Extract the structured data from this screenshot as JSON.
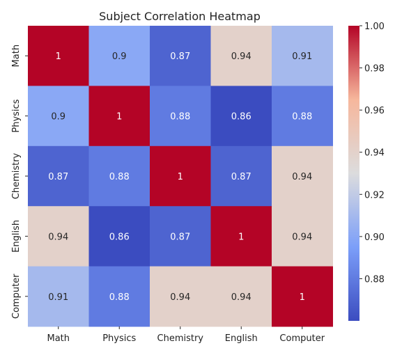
{
  "chart_data": {
    "type": "heatmap",
    "title": "Subject Correlation Heatmap",
    "rows": [
      "Math",
      "Physics",
      "Chemistry",
      "English",
      "Computer"
    ],
    "columns": [
      "Math",
      "Physics",
      "Chemistry",
      "English",
      "Computer"
    ],
    "values": [
      [
        1,
        0.9,
        0.87,
        0.94,
        0.91
      ],
      [
        0.9,
        1,
        0.88,
        0.86,
        0.88
      ],
      [
        0.87,
        0.88,
        1,
        0.87,
        0.94
      ],
      [
        0.94,
        0.86,
        0.87,
        1,
        0.94
      ],
      [
        0.91,
        0.88,
        0.94,
        0.94,
        1
      ]
    ],
    "value_labels": [
      [
        "1",
        "0.9",
        "0.87",
        "0.94",
        "0.91"
      ],
      [
        "0.9",
        "1",
        "0.88",
        "0.86",
        "0.88"
      ],
      [
        "0.87",
        "0.88",
        "1",
        "0.87",
        "0.94"
      ],
      [
        "0.94",
        "0.86",
        "0.87",
        "1",
        "0.94"
      ],
      [
        "0.91",
        "0.88",
        "0.94",
        "0.94",
        "1"
      ]
    ],
    "colormap": "coolwarm",
    "value_range": [
      0.86,
      1.0
    ],
    "colorbar": {
      "ticks": [
        0.88,
        0.9,
        0.92,
        0.94,
        0.96,
        0.98,
        1.0
      ],
      "tick_labels": [
        "0.88",
        "0.90",
        "0.92",
        "0.94",
        "0.96",
        "0.98",
        "1.00"
      ]
    },
    "grid": false
  }
}
